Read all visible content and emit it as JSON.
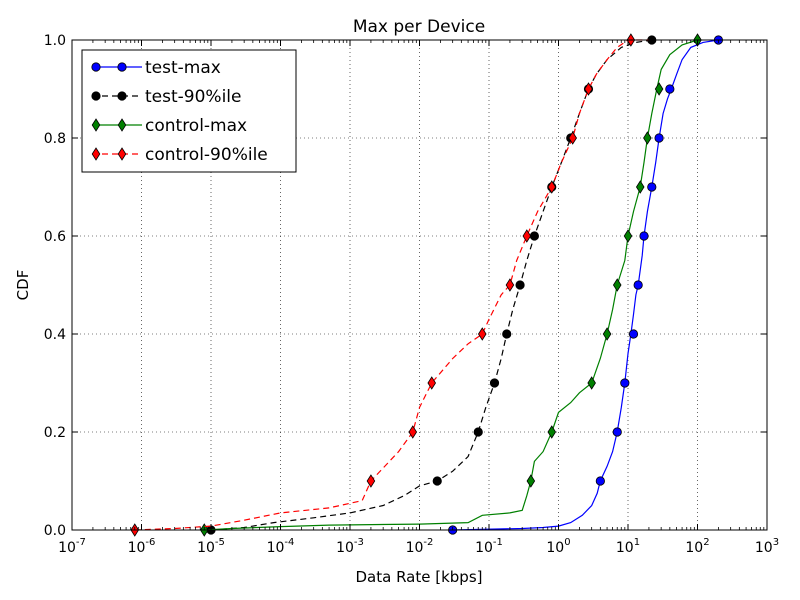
{
  "chart_data": {
    "type": "line",
    "title": "Max per Device",
    "xlabel": "Data Rate [kbps]",
    "ylabel": "CDF",
    "xscale": "log",
    "xlim": [
      1e-07,
      1000
    ],
    "ylim": [
      0,
      1
    ],
    "grid": true,
    "legend_position": "top-left",
    "x_ticks": [
      {
        "value": 1e-07,
        "exp": "-7"
      },
      {
        "value": 1e-06,
        "exp": "-6"
      },
      {
        "value": 1e-05,
        "exp": "-5"
      },
      {
        "value": 0.0001,
        "exp": "-4"
      },
      {
        "value": 0.001,
        "exp": "-3"
      },
      {
        "value": 0.01,
        "exp": "-2"
      },
      {
        "value": 0.1,
        "exp": "-1"
      },
      {
        "value": 1,
        "exp": "0"
      },
      {
        "value": 10,
        "exp": "1"
      },
      {
        "value": 100,
        "exp": "2"
      },
      {
        "value": 1000,
        "exp": "3"
      }
    ],
    "y_ticks": [
      "0.0",
      "0.2",
      "0.4",
      "0.6",
      "0.8",
      "1.0"
    ],
    "series": [
      {
        "name": "test-max",
        "color": "#0000ff",
        "dash": "solid",
        "marker": "circle",
        "line": [
          [
            0.03,
            0
          ],
          [
            0.3,
            0.003
          ],
          [
            0.6,
            0.005
          ],
          [
            1,
            0.008
          ],
          [
            1.5,
            0.015
          ],
          [
            2.2,
            0.03
          ],
          [
            3,
            0.05
          ],
          [
            3.6,
            0.075
          ],
          [
            4,
            0.1
          ],
          [
            5,
            0.13
          ],
          [
            6,
            0.16
          ],
          [
            7,
            0.2
          ],
          [
            8,
            0.25
          ],
          [
            9,
            0.3
          ],
          [
            10,
            0.36
          ],
          [
            11,
            0.4
          ],
          [
            12,
            0.44
          ],
          [
            13,
            0.48
          ],
          [
            14,
            0.5
          ],
          [
            16,
            0.56
          ],
          [
            17,
            0.6
          ],
          [
            19,
            0.65
          ],
          [
            22,
            0.7
          ],
          [
            25,
            0.75
          ],
          [
            28,
            0.8
          ],
          [
            32,
            0.85
          ],
          [
            37,
            0.88
          ],
          [
            42,
            0.9
          ],
          [
            50,
            0.93
          ],
          [
            60,
            0.96
          ],
          [
            80,
            0.985
          ],
          [
            120,
            0.995
          ],
          [
            200,
            1
          ]
        ],
        "markers": [
          [
            0.03,
            0
          ],
          [
            4,
            0.1
          ],
          [
            7,
            0.2
          ],
          [
            9,
            0.3
          ],
          [
            12,
            0.4
          ],
          [
            14,
            0.5
          ],
          [
            17,
            0.6
          ],
          [
            22,
            0.7
          ],
          [
            28,
            0.8
          ],
          [
            40,
            0.9
          ],
          [
            200,
            1
          ]
        ]
      },
      {
        "name": "test-90%ile",
        "color": "#000000",
        "dash": "dashed",
        "marker": "circle",
        "line": [
          [
            1e-05,
            0
          ],
          [
            3e-05,
            0.005
          ],
          [
            8e-05,
            0.015
          ],
          [
            0.0003,
            0.025
          ],
          [
            0.001,
            0.035
          ],
          [
            0.003,
            0.05
          ],
          [
            0.006,
            0.07
          ],
          [
            0.01,
            0.09
          ],
          [
            0.018,
            0.1
          ],
          [
            0.03,
            0.12
          ],
          [
            0.05,
            0.15
          ],
          [
            0.07,
            0.2
          ],
          [
            0.09,
            0.25
          ],
          [
            0.12,
            0.3
          ],
          [
            0.15,
            0.35
          ],
          [
            0.18,
            0.4
          ],
          [
            0.22,
            0.45
          ],
          [
            0.28,
            0.5
          ],
          [
            0.35,
            0.55
          ],
          [
            0.45,
            0.6
          ],
          [
            0.6,
            0.65
          ],
          [
            0.8,
            0.7
          ],
          [
            1.1,
            0.75
          ],
          [
            1.5,
            0.8
          ],
          [
            2,
            0.85
          ],
          [
            2.7,
            0.9
          ],
          [
            3.5,
            0.93
          ],
          [
            5,
            0.96
          ],
          [
            8,
            0.985
          ],
          [
            13,
            0.995
          ],
          [
            22,
            1
          ]
        ],
        "markers": [
          [
            1e-05,
            0
          ],
          [
            0.018,
            0.1
          ],
          [
            0.07,
            0.2
          ],
          [
            0.12,
            0.3
          ],
          [
            0.18,
            0.4
          ],
          [
            0.28,
            0.5
          ],
          [
            0.45,
            0.6
          ],
          [
            0.8,
            0.7
          ],
          [
            1.5,
            0.8
          ],
          [
            2.7,
            0.9
          ],
          [
            22,
            1
          ]
        ]
      },
      {
        "name": "control-max",
        "color": "#008000",
        "dash": "solid",
        "marker": "diamond",
        "line": [
          [
            8e-06,
            0
          ],
          [
            2e-05,
            0.003
          ],
          [
            0.0001,
            0.007
          ],
          [
            0.0005,
            0.01
          ],
          [
            0.01,
            0.012
          ],
          [
            0.05,
            0.015
          ],
          [
            0.08,
            0.03
          ],
          [
            0.2,
            0.035
          ],
          [
            0.3,
            0.04
          ],
          [
            0.35,
            0.07
          ],
          [
            0.4,
            0.1
          ],
          [
            0.45,
            0.14
          ],
          [
            0.6,
            0.16
          ],
          [
            0.8,
            0.2
          ],
          [
            1,
            0.24
          ],
          [
            1.5,
            0.26
          ],
          [
            2,
            0.28
          ],
          [
            3,
            0.3
          ],
          [
            4,
            0.35
          ],
          [
            5,
            0.4
          ],
          [
            6,
            0.45
          ],
          [
            7,
            0.5
          ],
          [
            9,
            0.55
          ],
          [
            10,
            0.6
          ],
          [
            12,
            0.65
          ],
          [
            15,
            0.7
          ],
          [
            17,
            0.75
          ],
          [
            19,
            0.8
          ],
          [
            22,
            0.85
          ],
          [
            26,
            0.9
          ],
          [
            30,
            0.94
          ],
          [
            40,
            0.97
          ],
          [
            60,
            0.99
          ],
          [
            100,
            1
          ]
        ],
        "markers": [
          [
            8e-06,
            0
          ],
          [
            0.4,
            0.1
          ],
          [
            0.8,
            0.2
          ],
          [
            3,
            0.3
          ],
          [
            5,
            0.4
          ],
          [
            7,
            0.5
          ],
          [
            10,
            0.6
          ],
          [
            15,
            0.7
          ],
          [
            19,
            0.8
          ],
          [
            28,
            0.9
          ],
          [
            100,
            1
          ]
        ]
      },
      {
        "name": "control-90%ile",
        "color": "#ff0000",
        "dash": "dashed",
        "marker": "diamond",
        "line": [
          [
            8e-07,
            0
          ],
          [
            3e-06,
            0.003
          ],
          [
            1e-05,
            0.008
          ],
          [
            3e-05,
            0.02
          ],
          [
            0.0001,
            0.035
          ],
          [
            0.0005,
            0.045
          ],
          [
            0.0015,
            0.06
          ],
          [
            0.002,
            0.1
          ],
          [
            0.005,
            0.16
          ],
          [
            0.008,
            0.2
          ],
          [
            0.01,
            0.25
          ],
          [
            0.015,
            0.3
          ],
          [
            0.03,
            0.35
          ],
          [
            0.05,
            0.38
          ],
          [
            0.08,
            0.4
          ],
          [
            0.1,
            0.43
          ],
          [
            0.15,
            0.48
          ],
          [
            0.2,
            0.5
          ],
          [
            0.25,
            0.55
          ],
          [
            0.35,
            0.6
          ],
          [
            0.5,
            0.65
          ],
          [
            0.8,
            0.7
          ],
          [
            1.1,
            0.75
          ],
          [
            1.6,
            0.8
          ],
          [
            2,
            0.85
          ],
          [
            2.7,
            0.9
          ],
          [
            3.5,
            0.93
          ],
          [
            5,
            0.96
          ],
          [
            7,
            0.985
          ],
          [
            10,
            1
          ],
          [
            20,
            1
          ]
        ],
        "markers": [
          [
            8e-07,
            0
          ],
          [
            0.002,
            0.1
          ],
          [
            0.008,
            0.2
          ],
          [
            0.015,
            0.3
          ],
          [
            0.08,
            0.4
          ],
          [
            0.2,
            0.5
          ],
          [
            0.35,
            0.6
          ],
          [
            0.8,
            0.7
          ],
          [
            1.6,
            0.8
          ],
          [
            2.7,
            0.9
          ],
          [
            11,
            1
          ]
        ]
      }
    ]
  }
}
